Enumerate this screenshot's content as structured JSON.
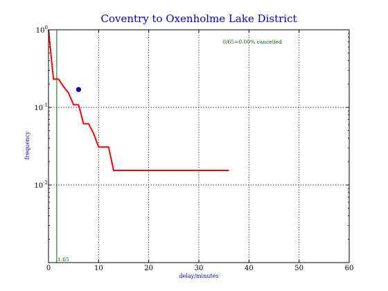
{
  "chart_data": {
    "type": "line",
    "title": "Coventry to Oxenholme Lake District",
    "xlabel": "delay/minutes",
    "ylabel": "frequency",
    "xlim": [
      0,
      60
    ],
    "ylim": [
      0.001,
      1
    ],
    "yscale": "log",
    "grid": true,
    "x_ticks": [
      0,
      10,
      20,
      30,
      40,
      50,
      60
    ],
    "y_ticks": [
      {
        "value": 1,
        "base": "10",
        "exp": "0"
      },
      {
        "value": 0.1,
        "base": "10",
        "exp": "-1"
      },
      {
        "value": 0.01,
        "base": "10",
        "exp": "-2"
      }
    ],
    "series": [
      {
        "color": "#ff0000",
        "x": [
          0,
          1,
          2,
          3,
          4,
          5,
          6,
          7,
          8,
          9,
          10,
          11,
          12,
          13,
          36
        ],
        "y": [
          1,
          0.231,
          0.231,
          0.185,
          0.154,
          0.108,
          0.108,
          0.0615,
          0.0615,
          0.0462,
          0.0308,
          0.0308,
          0.0308,
          0.0154,
          0.0154
        ]
      }
    ],
    "marker": {
      "x": 6,
      "y": 0.17,
      "color": "#0000ff"
    },
    "vline": {
      "x": 1.65,
      "label": "1.65",
      "color": "#006600"
    },
    "annotation": "0/65=0.00% cancelled"
  }
}
